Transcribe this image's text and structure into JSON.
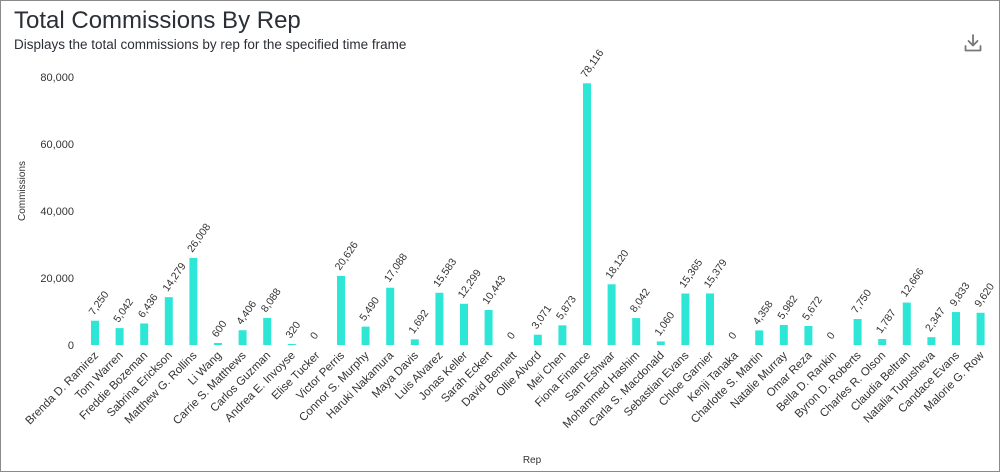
{
  "header": {
    "title": "Total Commissions By Rep",
    "subtitle": "Displays the total commissions by rep for the specified time frame"
  },
  "toolbar": {
    "download_icon": "download-icon"
  },
  "chart_data": {
    "type": "bar",
    "xlabel": "Rep",
    "ylabel": "Commissions",
    "ylim": [
      0,
      80000
    ],
    "yticks": [
      0,
      20000,
      40000,
      60000,
      80000
    ],
    "ytick_labels": [
      "0",
      "20,000",
      "40,000",
      "60,000",
      "80,000"
    ],
    "grid": false,
    "bar_color": "#2ee6d6",
    "categories": [
      "Brenda D. Ramirez",
      "Tom Warren",
      "Freddie Bozeman",
      "Sabrina Erickson",
      "Matthew G. Rollins",
      "Li Wang",
      "Carrie S. Matthews",
      "Carlos Guzman",
      "Andrea E. Invoyse",
      "Elise Tucker",
      "Victor Perris",
      "Connor S. Murphy",
      "Haruki Nakamura",
      "Maya Davis",
      "Luis Alvarez",
      "Jonas Keller",
      "Sarah Eckert",
      "David Bennett",
      "Ollie Alvord",
      "Mei Chen",
      "Fiona Finance",
      "Sam Eshwar",
      "Mohammed Hashim",
      "Carla S. Macdonald",
      "Sebastian Evans",
      "Chloe Garnier",
      "Kenji Tanaka",
      "Charlotte S. Martin",
      "Natalie Murray",
      "Omar Reza",
      "Bella D. Rankin",
      "Byron D. Roberts",
      "Charles R. Olson",
      "Claudia Beltran",
      "Natalia Tupusheva",
      "Candace Evans",
      "Malorie G. Row"
    ],
    "values": [
      7250,
      5042,
      6436,
      14279,
      26008,
      600,
      4406,
      8088,
      320,
      0,
      20626,
      5490,
      17088,
      1692,
      15583,
      12299,
      10443,
      0,
      3071,
      5873,
      78116,
      18120,
      8042,
      1060,
      15365,
      15379,
      0,
      4358,
      5982,
      5672,
      0,
      7750,
      1787,
      12666,
      2347,
      9833,
      9620
    ],
    "value_labels": [
      "7,250",
      "5,042",
      "6,436",
      "14,279",
      "26,008",
      "600",
      "4,406",
      "8,088",
      "320",
      "0",
      "20,626",
      "5,490",
      "17,088",
      "1,692",
      "15,583",
      "12,299",
      "10,443",
      "0",
      "3,071",
      "5,873",
      "78,116",
      "18,120",
      "8,042",
      "1,060",
      "15,365",
      "15,379",
      "0",
      "4,358",
      "5,982",
      "5,672",
      "0",
      "7,750",
      "1,787",
      "12,666",
      "2,347",
      "9,833",
      "9,620"
    ]
  }
}
